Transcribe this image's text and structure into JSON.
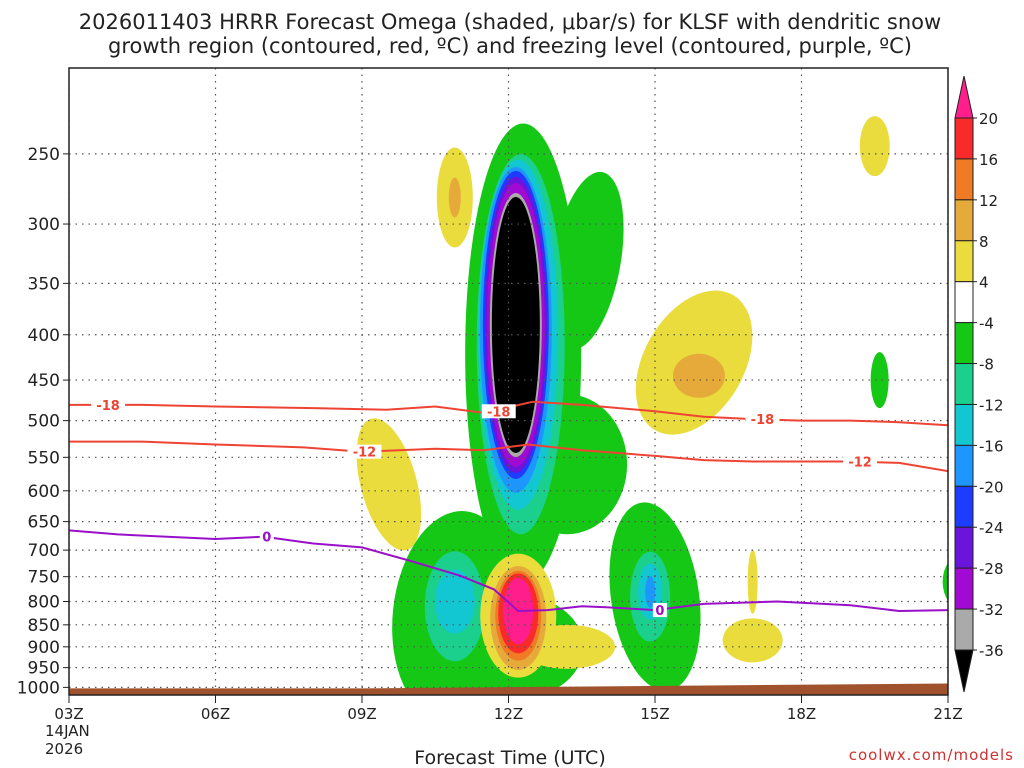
{
  "chart_data": {
    "type": "heatmap",
    "title_line1": "2026011403 HRRR Forecast Omega (shaded, μbar/s) for KLSF with dendritic snow",
    "title_line2": "growth region (contoured, red, ºC) and freezing level (contoured, purple, ºC)",
    "xlabel": "Forecast Time (UTC)",
    "ylabel": "",
    "credit": "coolwx.com/models",
    "x_axis": {
      "range_hours": [
        0,
        18
      ],
      "ticks": [
        {
          "hour": 0,
          "label": "03Z"
        },
        {
          "hour": 3,
          "label": "06Z"
        },
        {
          "hour": 6,
          "label": "09Z"
        },
        {
          "hour": 9,
          "label": "12Z"
        },
        {
          "hour": 12,
          "label": "15Z"
        },
        {
          "hour": 15,
          "label": "18Z"
        },
        {
          "hour": 18,
          "label": "21Z"
        }
      ],
      "date_label_line1": "14JAN",
      "date_label_line2": "2026"
    },
    "y_axis": {
      "units": "mb",
      "scale": "log-pressure",
      "range": [
        1020,
        200
      ],
      "ticks": [
        250,
        300,
        350,
        400,
        450,
        500,
        550,
        600,
        650,
        700,
        750,
        800,
        850,
        900,
        950,
        1000
      ],
      "tick_labels": [
        "250",
        "300",
        "350",
        "400",
        "450",
        "500",
        "550",
        "600",
        "650",
        "700",
        "750",
        "800",
        "850",
        "900",
        "950",
        "1000"
      ]
    },
    "colorbar": {
      "levels": [
        {
          "lo": 20,
          "hi": 24,
          "color": "#ff1e8c"
        },
        {
          "lo": 16,
          "hi": 20,
          "color": "#f82a2a"
        },
        {
          "lo": 12,
          "hi": 16,
          "color": "#ef7b24"
        },
        {
          "lo": 8,
          "hi": 12,
          "color": "#e5aa3a"
        },
        {
          "lo": 4,
          "hi": 8,
          "color": "#eadc3c"
        },
        {
          "lo": -4,
          "hi": 4,
          "color": "#ffffff"
        },
        {
          "lo": -8,
          "hi": -4,
          "color": "#16c816"
        },
        {
          "lo": -12,
          "hi": -8,
          "color": "#1ad08c"
        },
        {
          "lo": -16,
          "hi": -12,
          "color": "#12c6d2"
        },
        {
          "lo": -20,
          "hi": -16,
          "color": "#1e96ff"
        },
        {
          "lo": -24,
          "hi": -20,
          "color": "#1e3cff"
        },
        {
          "lo": -28,
          "hi": -24,
          "color": "#6a14dc"
        },
        {
          "lo": -32,
          "hi": -28,
          "color": "#a00ad2"
        },
        {
          "lo": -36,
          "hi": -32,
          "color": "#aaaaaa"
        },
        {
          "lo": -40,
          "hi": -36,
          "color": "#000000"
        }
      ],
      "tick_labels": [
        "20",
        "16",
        "12",
        "8",
        "4",
        "-4",
        "-8",
        "-12",
        "-16",
        "-20",
        "-24",
        "-28",
        "-32",
        "-36"
      ],
      "top_triangle_color": "#ff1e8c",
      "bottom_triangle_color": "#000000"
    },
    "omega_features": [
      {
        "name": "strong-ascent-core",
        "center_hour": 9.15,
        "center_mb": 380,
        "min_value": -40,
        "peak_mb_top": 265,
        "peak_mb_bottom": 655
      },
      {
        "name": "low-level-descent",
        "center_hour": 9.15,
        "center_mb": 820,
        "max_value": 22
      },
      {
        "name": "low-level-ascent-left",
        "center_hour": 8.0,
        "center_mb": 820,
        "min_value": -14
      },
      {
        "name": "low-level-ascent-right",
        "center_hour": 11.8,
        "center_mb": 800,
        "min_value": -18
      },
      {
        "name": "upper-descent-left",
        "center_hour": 7.9,
        "center_mb": 275,
        "max_value": 11
      },
      {
        "name": "mid-descent-right",
        "center_hour": 12.8,
        "center_mb": 440,
        "max_value": 11
      },
      {
        "name": "upper-descent-far-right",
        "center_hour": 16.5,
        "center_mb": 240,
        "max_value": 6
      }
    ],
    "contours": [
      {
        "name": "dendritic-upper",
        "level": -18,
        "label": "-18",
        "color": "#ee4433",
        "points": [
          [
            0,
            480
          ],
          [
            1.5,
            480
          ],
          [
            3,
            482
          ],
          [
            5,
            484
          ],
          [
            6.5,
            486
          ],
          [
            7.5,
            482
          ],
          [
            8.5,
            490
          ],
          [
            9.5,
            476
          ],
          [
            10.5,
            480
          ],
          [
            12,
            488
          ],
          [
            13,
            495
          ],
          [
            14,
            498
          ],
          [
            15,
            500
          ],
          [
            16,
            500
          ],
          [
            17,
            502
          ],
          [
            18,
            506
          ]
        ],
        "label_positions": [
          [
            0.8,
            480
          ],
          [
            8.8,
            488
          ],
          [
            14.2,
            498
          ]
        ]
      },
      {
        "name": "dendritic-lower",
        "level": -12,
        "label": "-12",
        "color": "#ee4433",
        "points": [
          [
            0,
            528
          ],
          [
            1.5,
            528
          ],
          [
            3,
            532
          ],
          [
            4.8,
            536
          ],
          [
            6,
            542
          ],
          [
            7.5,
            538
          ],
          [
            8.5,
            540
          ],
          [
            9.4,
            532
          ],
          [
            10.5,
            540
          ],
          [
            12,
            548
          ],
          [
            13,
            554
          ],
          [
            14,
            556
          ],
          [
            15,
            556
          ],
          [
            16,
            556
          ],
          [
            17,
            558
          ],
          [
            18,
            570
          ]
        ],
        "label_positions": [
          [
            6.05,
            542
          ],
          [
            16.2,
            556
          ]
        ]
      },
      {
        "name": "freezing-level",
        "level": 0,
        "label": "0",
        "color": "#9a10c8",
        "points": [
          [
            0,
            665
          ],
          [
            1,
            672
          ],
          [
            3,
            680
          ],
          [
            4,
            676
          ],
          [
            5,
            688
          ],
          [
            6,
            695
          ],
          [
            7,
            720
          ],
          [
            8,
            748
          ],
          [
            8.7,
            775
          ],
          [
            9.2,
            820
          ],
          [
            9.8,
            818
          ],
          [
            10.5,
            810
          ],
          [
            11,
            812
          ],
          [
            12,
            818
          ],
          [
            13,
            805
          ],
          [
            14.5,
            800
          ],
          [
            16,
            808
          ],
          [
            17,
            820
          ],
          [
            18,
            818
          ]
        ],
        "label_positions": [
          [
            4.05,
            676
          ],
          [
            12.1,
            818
          ]
        ]
      }
    ],
    "terrain": {
      "surface_mb_left": 1000,
      "surface_mb_right": 990,
      "color": "#a0522d"
    }
  }
}
